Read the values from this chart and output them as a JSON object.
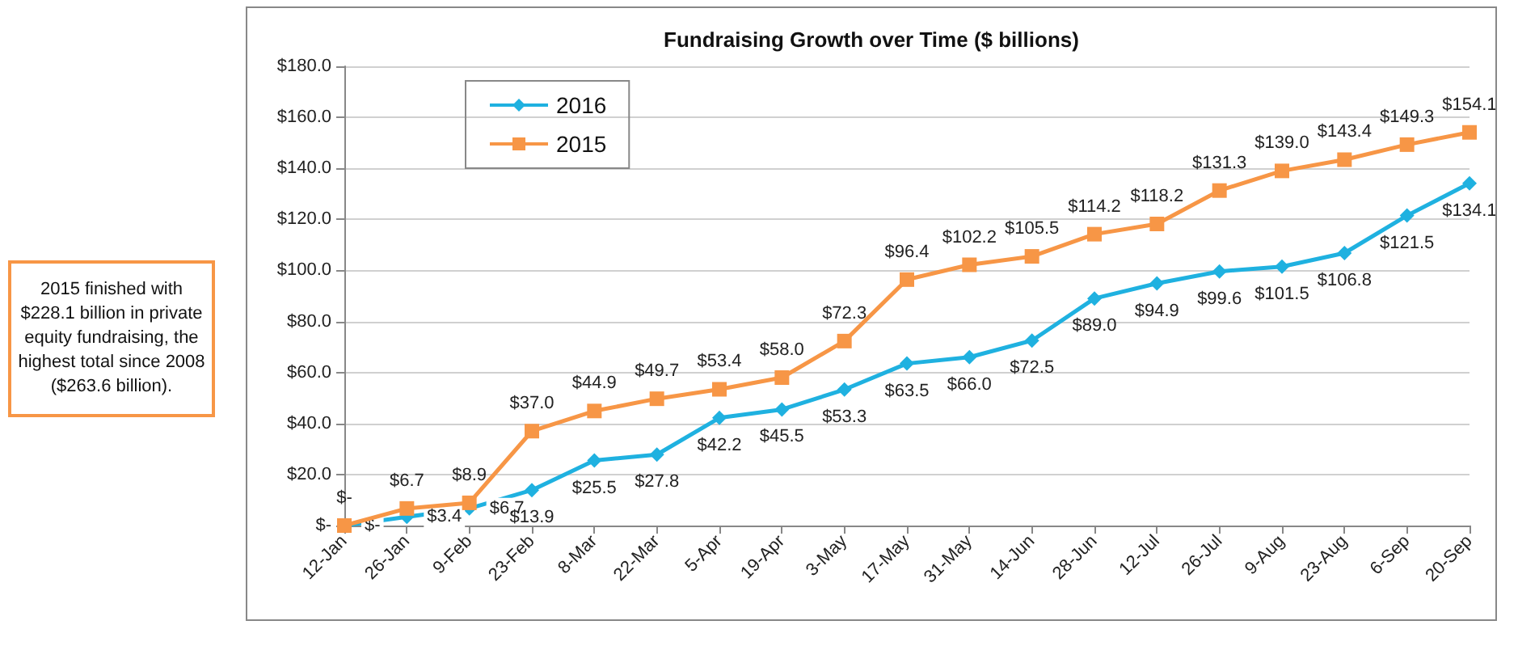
{
  "chart_data": {
    "type": "line",
    "title": "Fundraising Growth over Time ($ billions)",
    "categories": [
      "12-Jan",
      "26-Jan",
      "9-Feb",
      "23-Feb",
      "8-Mar",
      "22-Mar",
      "5-Apr",
      "19-Apr",
      "3-May",
      "17-May",
      "31-May",
      "14-Jun",
      "28-Jun",
      "12-Jul",
      "26-Jul",
      "9-Aug",
      "23-Aug",
      "6-Sep",
      "20-Sep"
    ],
    "series": [
      {
        "name": "2016",
        "color": "#1fb1e0",
        "marker": "diamond",
        "values": [
          0,
          3.4,
          6.7,
          13.9,
          25.5,
          27.8,
          42.2,
          45.5,
          53.3,
          63.5,
          66.0,
          72.5,
          89.0,
          94.9,
          99.6,
          101.5,
          106.8,
          121.5,
          134.1
        ],
        "value_labels": [
          "$-",
          "$3.4",
          "$6.7",
          "$13.9",
          "$25.5",
          "$27.8",
          "$42.2",
          "$45.5",
          "$53.3",
          "$63.5",
          "$66.0",
          "$72.5",
          "$89.0",
          "$94.9",
          "$99.6",
          "$101.5",
          "$106.8",
          "$121.5",
          "$134.1"
        ]
      },
      {
        "name": "2015",
        "color": "#f79646",
        "marker": "square",
        "values": [
          0,
          6.7,
          8.9,
          37.0,
          44.9,
          49.7,
          53.4,
          58.0,
          72.3,
          96.4,
          102.2,
          105.5,
          114.2,
          118.2,
          131.3,
          139.0,
          143.4,
          149.3,
          154.1
        ],
        "value_labels": [
          "$-",
          "$6.7",
          "$8.9",
          "$37.0",
          "$44.9",
          "$49.7",
          "$53.4",
          "$58.0",
          "$72.3",
          "$96.4",
          "$102.2",
          "$105.5",
          "$114.2",
          "$118.2",
          "$131.3",
          "$139.0",
          "$143.4",
          "$149.3",
          "$154.1"
        ]
      }
    ],
    "ylim": [
      0,
      180
    ],
    "yticks": [
      {
        "value": 0,
        "label": "$-"
      },
      {
        "value": 20,
        "label": "$20.0"
      },
      {
        "value": 40,
        "label": "$40.0"
      },
      {
        "value": 60,
        "label": "$60.0"
      },
      {
        "value": 80,
        "label": "$80.0"
      },
      {
        "value": 100,
        "label": "$100.0"
      },
      {
        "value": 120,
        "label": "$120.0"
      },
      {
        "value": 140,
        "label": "$140.0"
      },
      {
        "value": 160,
        "label": "$160.0"
      },
      {
        "value": 180,
        "label": "$180.0"
      }
    ],
    "grid": "y",
    "legend": "top left",
    "line_style": "solid",
    "annotations": [
      "2015 finished with $228.1 billion in private equity fundraising, the highest total since 2008 ($263.6 billion)."
    ]
  }
}
